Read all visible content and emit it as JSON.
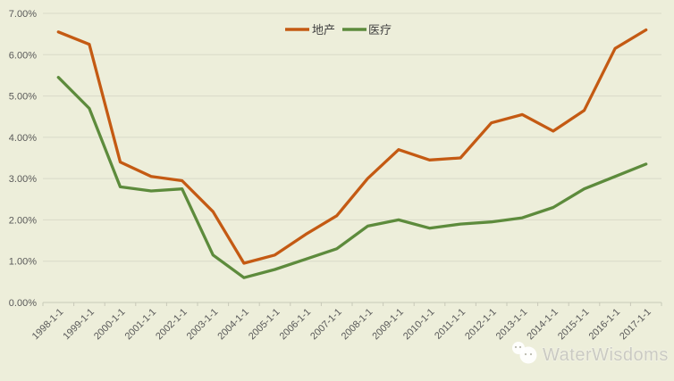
{
  "chart_data": {
    "type": "line",
    "title": "",
    "xlabel": "",
    "ylabel": "",
    "ylim": [
      0,
      7
    ],
    "grid": true,
    "legend_position": "top-center",
    "y_ticks": [
      "0.00%",
      "1.00%",
      "2.00%",
      "3.00%",
      "4.00%",
      "5.00%",
      "6.00%",
      "7.00%"
    ],
    "x_labels": [
      "1998-1-1",
      "1999-1-1",
      "2000-1-1",
      "2001-1-1",
      "2002-1-1",
      "2003-1-1",
      "2004-1-1",
      "2005-1-1",
      "2006-1-1",
      "2007-1-1",
      "2008-1-1",
      "2009-1-1",
      "2010-1-1",
      "2011-1-1",
      "2012-1-1",
      "2013-1-1",
      "2014-1-1",
      "2015-1-1",
      "2016-1-1",
      "2017-1-1"
    ],
    "series": [
      {
        "name": "地产",
        "color": "#c45a13",
        "values": [
          6.55,
          6.25,
          3.4,
          3.05,
          2.95,
          2.2,
          0.95,
          1.15,
          1.65,
          2.1,
          3.0,
          3.7,
          3.45,
          3.5,
          4.35,
          4.55,
          4.15,
          4.65,
          6.15,
          6.6
        ]
      },
      {
        "name": "医疗",
        "color": "#5d8b3c",
        "values": [
          5.45,
          4.7,
          2.8,
          2.7,
          2.75,
          1.15,
          0.6,
          0.8,
          1.05,
          1.3,
          1.85,
          2.0,
          1.8,
          1.9,
          1.95,
          2.05,
          2.3,
          2.75,
          3.05,
          3.35
        ]
      }
    ]
  },
  "watermark": {
    "text": "WaterWisdoms",
    "icon": "chat-bubbles-icon"
  },
  "colors": {
    "background": "#edeeda",
    "gridline": "#d9dac8",
    "axis_line": "#c8c9b8",
    "tick_text": "#595959",
    "watermark_text": "#c9c9c0"
  }
}
